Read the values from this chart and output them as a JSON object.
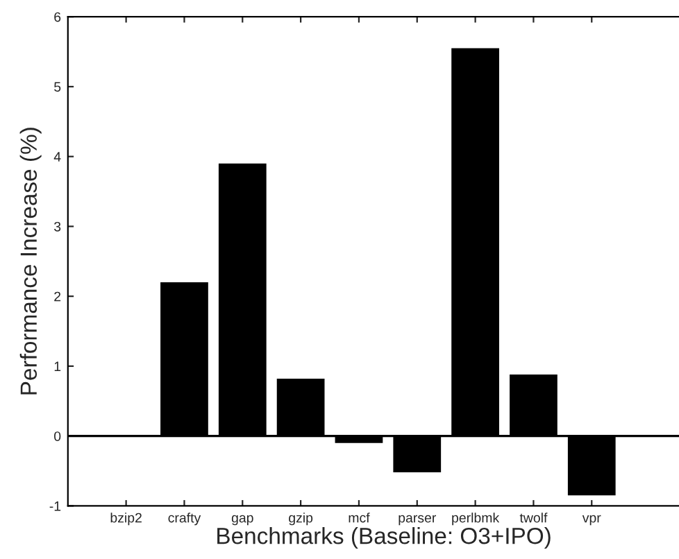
{
  "chart_data": {
    "type": "bar",
    "xlabel": "Benchmarks (Baseline: O3+IPO)",
    "ylabel": "Performance Increase (%)",
    "categories": [
      "bzip2",
      "crafty",
      "gap",
      "gzip",
      "mcf",
      "parser",
      "perlbmk",
      "twolf",
      "vpr"
    ],
    "values": [
      null,
      2.2,
      3.9,
      0.82,
      -0.1,
      -0.52,
      5.55,
      0.88,
      -0.85
    ],
    "color": "#000000",
    "ylim": [
      -1,
      6
    ],
    "yticks": [
      -1,
      0,
      1,
      2,
      3,
      4,
      5,
      6
    ],
    "ref_lines": [
      {
        "axis": "y",
        "value": 0,
        "color": "#000000"
      }
    ],
    "grid": false,
    "legend": false
  }
}
